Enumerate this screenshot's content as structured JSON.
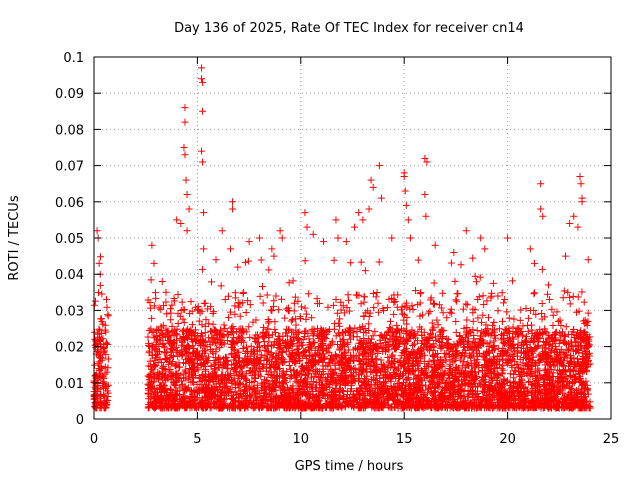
{
  "chart_data": {
    "type": "scatter",
    "title": "Day 136 of 2025, Rate Of TEC Index for receiver cn14",
    "xlabel": "GPS time / hours",
    "ylabel": "ROTI / TECUs",
    "xlim": [
      0,
      25
    ],
    "ylim": [
      0,
      0.1
    ],
    "xticks": [
      0,
      5,
      10,
      15,
      20,
      25
    ],
    "yticks": [
      0,
      0.01,
      0.02,
      0.03,
      0.04,
      0.05,
      0.06,
      0.07,
      0.08,
      0.09,
      0.1
    ],
    "xtick_labels": [
      "0",
      "5",
      "10",
      "15",
      "20",
      "25"
    ],
    "ytick_labels": [
      "0",
      "0.01",
      "0.02",
      "0.03",
      "0.04",
      "0.05",
      "0.06",
      "0.07",
      "0.08",
      "0.09",
      "0.1"
    ],
    "grid": true,
    "marker": "+",
    "color": "#ff0000",
    "series": [
      {
        "name": "ROTI",
        "data_ranges_hours": [
          [
            0,
            0.7
          ],
          [
            2.6,
            24.0
          ]
        ],
        "highlights": [
          {
            "x": 0.15,
            "y": 0.052
          },
          {
            "x": 0.2,
            "y": 0.05
          },
          {
            "x": 0.25,
            "y": 0.043
          },
          {
            "x": 0.3,
            "y": 0.04
          },
          {
            "x": 2.8,
            "y": 0.048
          },
          {
            "x": 2.9,
            "y": 0.043
          },
          {
            "x": 3.3,
            "y": 0.038
          },
          {
            "x": 4.0,
            "y": 0.055
          },
          {
            "x": 4.2,
            "y": 0.054
          },
          {
            "x": 4.4,
            "y": 0.086
          },
          {
            "x": 4.4,
            "y": 0.082
          },
          {
            "x": 4.35,
            "y": 0.075
          },
          {
            "x": 4.4,
            "y": 0.073
          },
          {
            "x": 4.45,
            "y": 0.066
          },
          {
            "x": 4.5,
            "y": 0.062
          },
          {
            "x": 4.6,
            "y": 0.058
          },
          {
            "x": 4.5,
            "y": 0.052
          },
          {
            "x": 5.2,
            "y": 0.097
          },
          {
            "x": 5.2,
            "y": 0.094
          },
          {
            "x": 5.25,
            "y": 0.093
          },
          {
            "x": 5.25,
            "y": 0.085
          },
          {
            "x": 5.2,
            "y": 0.074
          },
          {
            "x": 5.25,
            "y": 0.071
          },
          {
            "x": 5.3,
            "y": 0.057
          },
          {
            "x": 5.3,
            "y": 0.047
          },
          {
            "x": 5.9,
            "y": 0.044
          },
          {
            "x": 6.2,
            "y": 0.052
          },
          {
            "x": 6.7,
            "y": 0.06
          },
          {
            "x": 6.7,
            "y": 0.058
          },
          {
            "x": 6.6,
            "y": 0.047
          },
          {
            "x": 7.5,
            "y": 0.049
          },
          {
            "x": 8.0,
            "y": 0.05
          },
          {
            "x": 8.6,
            "y": 0.047
          },
          {
            "x": 8.7,
            "y": 0.045
          },
          {
            "x": 9.0,
            "y": 0.052
          },
          {
            "x": 9.1,
            "y": 0.05
          },
          {
            "x": 10.2,
            "y": 0.057
          },
          {
            "x": 10.3,
            "y": 0.053
          },
          {
            "x": 10.6,
            "y": 0.051
          },
          {
            "x": 11.1,
            "y": 0.049
          },
          {
            "x": 11.7,
            "y": 0.055
          },
          {
            "x": 11.8,
            "y": 0.05
          },
          {
            "x": 12.2,
            "y": 0.049
          },
          {
            "x": 12.6,
            "y": 0.053
          },
          {
            "x": 12.8,
            "y": 0.057
          },
          {
            "x": 13.0,
            "y": 0.055
          },
          {
            "x": 13.4,
            "y": 0.066
          },
          {
            "x": 13.5,
            "y": 0.064
          },
          {
            "x": 13.8,
            "y": 0.07
          },
          {
            "x": 13.9,
            "y": 0.061
          },
          {
            "x": 13.3,
            "y": 0.058
          },
          {
            "x": 14.4,
            "y": 0.05
          },
          {
            "x": 15.0,
            "y": 0.068
          },
          {
            "x": 15.0,
            "y": 0.067
          },
          {
            "x": 15.05,
            "y": 0.063
          },
          {
            "x": 15.1,
            "y": 0.059
          },
          {
            "x": 15.2,
            "y": 0.055
          },
          {
            "x": 15.3,
            "y": 0.05
          },
          {
            "x": 16.0,
            "y": 0.072
          },
          {
            "x": 16.1,
            "y": 0.071
          },
          {
            "x": 16.0,
            "y": 0.062
          },
          {
            "x": 16.05,
            "y": 0.056
          },
          {
            "x": 16.5,
            "y": 0.048
          },
          {
            "x": 17.4,
            "y": 0.046
          },
          {
            "x": 18.0,
            "y": 0.052
          },
          {
            "x": 18.7,
            "y": 0.05
          },
          {
            "x": 18.9,
            "y": 0.047
          },
          {
            "x": 20.0,
            "y": 0.05
          },
          {
            "x": 21.1,
            "y": 0.047
          },
          {
            "x": 21.3,
            "y": 0.043
          },
          {
            "x": 21.6,
            "y": 0.065
          },
          {
            "x": 21.6,
            "y": 0.058
          },
          {
            "x": 21.7,
            "y": 0.056
          },
          {
            "x": 22.8,
            "y": 0.045
          },
          {
            "x": 23.0,
            "y": 0.054
          },
          {
            "x": 23.2,
            "y": 0.056
          },
          {
            "x": 23.4,
            "y": 0.053
          },
          {
            "x": 23.5,
            "y": 0.067
          },
          {
            "x": 23.55,
            "y": 0.065
          },
          {
            "x": 23.6,
            "y": 0.061
          },
          {
            "x": 23.6,
            "y": 0.06
          },
          {
            "x": 23.9,
            "y": 0.044
          }
        ]
      }
    ]
  }
}
